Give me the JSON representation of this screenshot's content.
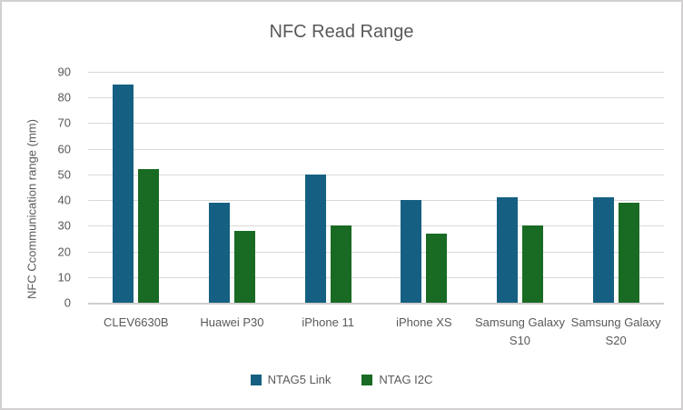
{
  "chart_data": {
    "type": "bar",
    "title": "NFC Read Range",
    "xlabel": "",
    "ylabel": "NFC Ccommunication range (mm)",
    "categories": [
      "CLEV6630B",
      "Huawei P30",
      "iPhone 11",
      "iPhone XS",
      "Samsung Galaxy S10",
      "Samsung Galaxy S20"
    ],
    "series": [
      {
        "name": "NTAG5 Link",
        "color": "#156082",
        "values": [
          85,
          39,
          50,
          40,
          41,
          41
        ]
      },
      {
        "name": "NTAG I2C",
        "color": "#196B24",
        "values": [
          52,
          28,
          30,
          27,
          30,
          39
        ]
      }
    ],
    "ylim": [
      0,
      90
    ],
    "yticks": [
      0,
      10,
      20,
      30,
      40,
      50,
      60,
      70,
      80,
      90
    ],
    "grid": true,
    "legend_position": "bottom"
  },
  "colors": {
    "text": "#595959",
    "gridline": "#D9D9D9",
    "axis_line": "#D0CECE",
    "border": "#D2D0D0",
    "background": "#FFFFFF"
  }
}
